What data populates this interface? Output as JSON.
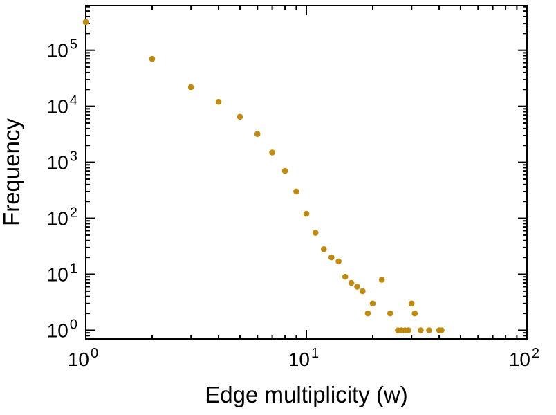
{
  "chart_data": {
    "type": "scatter",
    "title": "",
    "xlabel": "Edge multiplicity (w)",
    "ylabel": "Frequency",
    "x_scale": "log",
    "y_scale": "log",
    "xlim": [
      1,
      100
    ],
    "ylim": [
      0.7,
      630000
    ],
    "x_major_ticks": [
      1,
      10,
      100
    ],
    "y_major_ticks": [
      1,
      10,
      100,
      1000,
      10000,
      100000
    ],
    "grid": false,
    "legend": "none",
    "marker_color": "#bf8a0d",
    "frame_color": "#000000",
    "background_color": "#ffffff",
    "x": [
      1,
      2,
      3,
      4,
      5,
      6,
      7,
      8,
      9,
      10,
      11,
      12,
      13,
      14,
      15,
      16,
      17,
      18,
      19,
      20,
      22,
      24,
      26,
      27,
      28,
      29,
      30,
      31,
      33,
      36,
      40,
      41
    ],
    "y": [
      320000,
      70000,
      22000,
      12000,
      6500,
      3200,
      1500,
      700,
      300,
      120,
      55,
      28,
      20,
      17,
      9,
      7,
      6,
      5,
      2,
      3,
      8,
      2,
      1,
      1,
      1,
      1,
      3,
      2,
      1,
      1,
      1,
      1
    ]
  }
}
